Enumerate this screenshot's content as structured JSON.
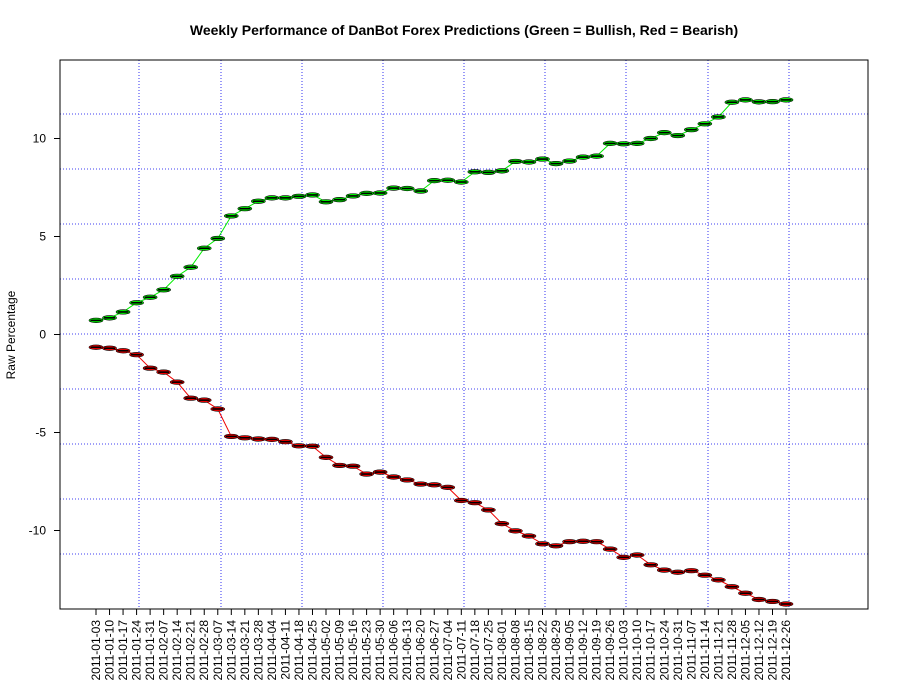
{
  "chart_data": {
    "type": "line",
    "title": "Weekly Performance of DanBot Forex Predictions (Green = Bullish, Red = Bearish)",
    "xlabel": "",
    "ylabel": "Raw Percentage",
    "grid": true,
    "ylim": [
      -14.0,
      14.0
    ],
    "y_ticks": [
      -10,
      -5,
      0,
      5,
      10
    ],
    "y_tick_labels": [
      "-10",
      "-5",
      "0",
      "5",
      "10"
    ],
    "categories": [
      "2011-01-03",
      "2011-01-10",
      "2011-01-17",
      "2011-01-24",
      "2011-01-31",
      "2011-02-07",
      "2011-02-14",
      "2011-02-21",
      "2011-02-28",
      "2011-03-07",
      "2011-03-14",
      "2011-03-21",
      "2011-03-28",
      "2011-04-04",
      "2011-04-11",
      "2011-04-18",
      "2011-04-25",
      "2011-05-02",
      "2011-05-09",
      "2011-05-16",
      "2011-05-23",
      "2011-05-30",
      "2011-06-06",
      "2011-06-13",
      "2011-06-20",
      "2011-06-27",
      "2011-07-04",
      "2011-07-11",
      "2011-07-18",
      "2011-07-25",
      "2011-08-01",
      "2011-08-08",
      "2011-08-15",
      "2011-08-22",
      "2011-08-29",
      "2011-09-05",
      "2011-09-12",
      "2011-09-19",
      "2011-09-26",
      "2011-10-03",
      "2011-10-10",
      "2011-10-17",
      "2011-10-24",
      "2011-10-31",
      "2011-11-07",
      "2011-11-14",
      "2011-11-21",
      "2011-11-28",
      "2011-12-05",
      "2011-12-12",
      "2011-12-19",
      "2011-12-26"
    ],
    "series": [
      {
        "color": "#00ee00",
        "values": [
          0.72,
          0.85,
          1.15,
          1.62,
          1.9,
          2.28,
          2.97,
          3.43,
          4.4,
          4.9,
          6.05,
          6.42,
          6.8,
          6.97,
          6.97,
          7.05,
          7.12,
          6.77,
          6.88,
          7.07,
          7.2,
          7.22,
          7.47,
          7.45,
          7.32,
          7.85,
          7.87,
          7.78,
          8.3,
          8.27,
          8.35,
          8.83,
          8.8,
          8.95,
          8.72,
          8.85,
          9.05,
          9.1,
          9.75,
          9.73,
          9.75,
          10.0,
          10.3,
          10.15,
          10.45,
          10.75,
          11.1,
          11.85,
          11.97,
          11.87,
          11.88,
          11.97
        ]
      },
      {
        "color": "#ee0000",
        "values": [
          -0.65,
          -0.7,
          -0.83,
          -1.03,
          -1.72,
          -1.92,
          -2.43,
          -3.25,
          -3.35,
          -3.8,
          -5.2,
          -5.27,
          -5.33,
          -5.35,
          -5.47,
          -5.68,
          -5.7,
          -6.27,
          -6.68,
          -6.72,
          -7.12,
          -7.02,
          -7.27,
          -7.42,
          -7.63,
          -7.67,
          -7.8,
          -8.47,
          -8.58,
          -8.95,
          -9.65,
          -10.02,
          -10.28,
          -10.68,
          -10.78,
          -10.57,
          -10.55,
          -10.57,
          -10.95,
          -11.37,
          -11.25,
          -11.75,
          -12.02,
          -12.13,
          -12.05,
          -12.28,
          -12.52,
          -12.87,
          -13.2,
          -13.52,
          -13.62,
          -13.75
        ]
      }
    ]
  }
}
